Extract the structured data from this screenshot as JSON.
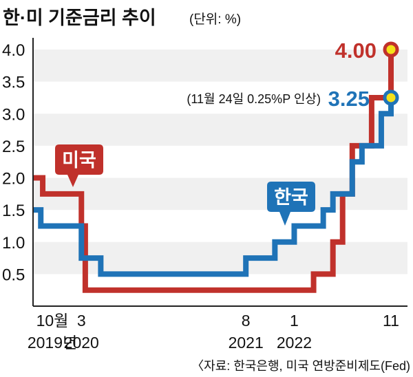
{
  "title": "한·미 기준금리 추이",
  "unit": "(단위: %)",
  "source": "〈자료: 한국은행, 미국 연방준비제도(Fed)",
  "annotations": {
    "us_label": "미국",
    "kr_label": "한국",
    "us_last_value": "4.00",
    "kr_last_value": "3.25",
    "kr_note": "(11월 24일 0.25%P 인상)"
  },
  "colors": {
    "us": "#c0312b",
    "kr": "#1f73b7",
    "band": "#f0f0f0",
    "axis": "#222222",
    "dot_fill": "#f5e11a"
  },
  "chart_data": {
    "type": "line",
    "step": true,
    "title": "한·미 기준금리 추이",
    "ylabel": "(단위: %)",
    "ylim": [
      0,
      4.0
    ],
    "yticks": [
      "4.0",
      "3.5",
      "3.0",
      "2.5",
      "2.0",
      "1.5",
      "1.0",
      "0.5"
    ],
    "xlim": [
      "2019-10",
      "2022-11"
    ],
    "xtick_labels": [
      {
        "x": "2019-10",
        "lines": [
          "10월",
          "2019년"
        ]
      },
      {
        "x": "2020-03",
        "lines": [
          "3",
          "2020"
        ]
      },
      {
        "x": "2021-08",
        "lines": [
          "8",
          "2021"
        ]
      },
      {
        "x": "2022-01",
        "lines": [
          "1",
          "2022"
        ]
      },
      {
        "x": "2022-11",
        "lines": [
          "11",
          ""
        ]
      }
    ],
    "series": [
      {
        "name": "미국",
        "points": [
          {
            "x": "2019-10",
            "y": 2.0
          },
          {
            "x": "2019-11",
            "y": 1.75
          },
          {
            "x": "2020-03",
            "y": 1.25
          },
          {
            "x": "2020-03.4",
            "y": 0.25
          },
          {
            "x": "2022-03",
            "y": 0.5
          },
          {
            "x": "2022-05",
            "y": 1.0
          },
          {
            "x": "2022-06",
            "y": 1.75
          },
          {
            "x": "2022-07",
            "y": 2.5
          },
          {
            "x": "2022-09",
            "y": 3.25
          },
          {
            "x": "2022-11",
            "y": 4.0
          }
        ]
      },
      {
        "name": "한국",
        "points": [
          {
            "x": "2019-10",
            "y": 1.5
          },
          {
            "x": "2019-10.8",
            "y": 1.25
          },
          {
            "x": "2020-03",
            "y": 0.75
          },
          {
            "x": "2020-05",
            "y": 0.5
          },
          {
            "x": "2021-08",
            "y": 0.75
          },
          {
            "x": "2021-11",
            "y": 1.0
          },
          {
            "x": "2022-01",
            "y": 1.25
          },
          {
            "x": "2022-04",
            "y": 1.5
          },
          {
            "x": "2022-05",
            "y": 1.75
          },
          {
            "x": "2022-07",
            "y": 2.25
          },
          {
            "x": "2022-08",
            "y": 2.5
          },
          {
            "x": "2022-10",
            "y": 3.0
          },
          {
            "x": "2022-11",
            "y": 3.25
          }
        ]
      }
    ]
  }
}
